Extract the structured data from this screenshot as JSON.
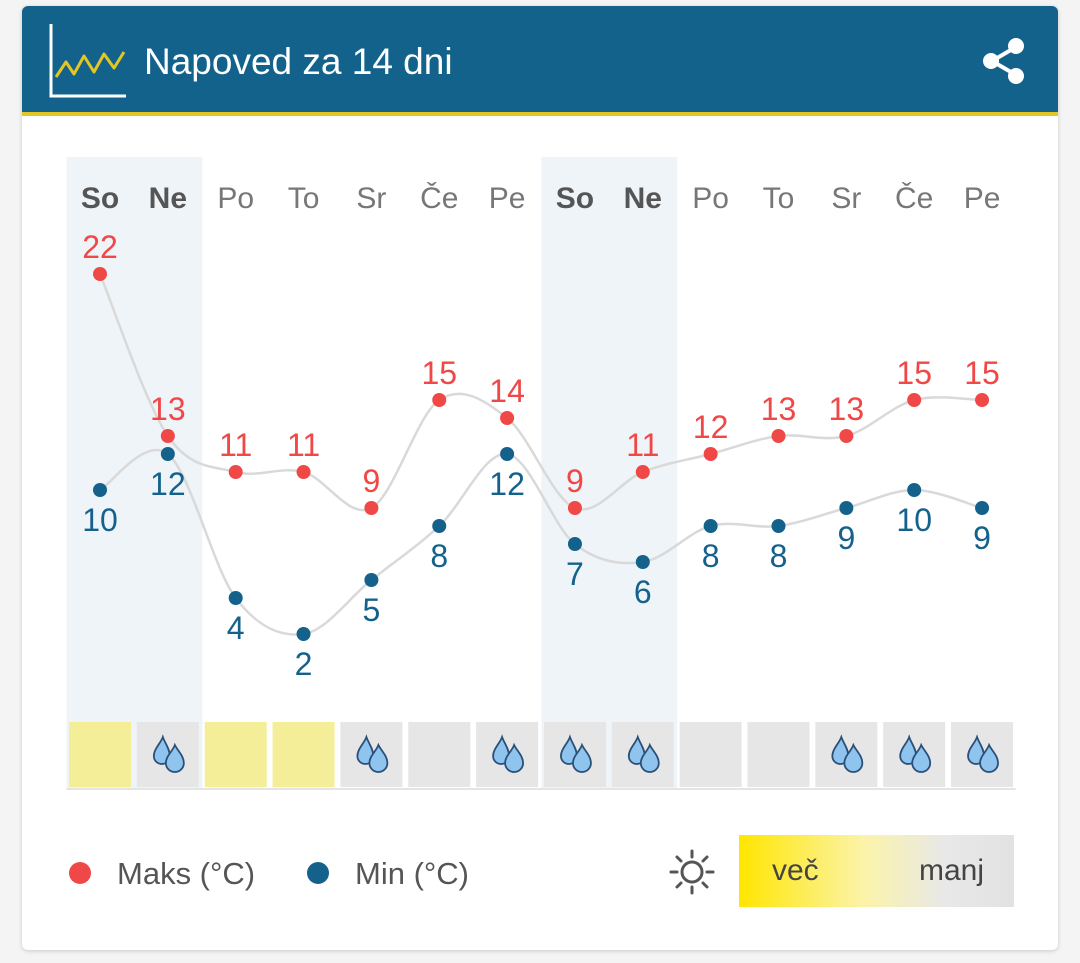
{
  "header": {
    "title": "Napoved za 14 dni",
    "icon": "line-chart-icon",
    "share_icon": "share-icon"
  },
  "colors": {
    "header_bg": "#12628c",
    "header_accent": "#e3c524",
    "max_color": "#f04747",
    "min_color": "#14628c",
    "weekend_bg": "#eff4f8",
    "sunny_cell": "#f5ee99",
    "grey_cell": "#e6e6e6",
    "line_color": "#d9d9d9"
  },
  "chart_data": {
    "type": "line",
    "title": "Napoved za 14 dni",
    "categories": [
      "So",
      "Ne",
      "Po",
      "To",
      "Sr",
      "Če",
      "Pe",
      "So",
      "Ne",
      "Po",
      "To",
      "Sr",
      "Če",
      "Pe"
    ],
    "weekend": [
      true,
      true,
      false,
      false,
      false,
      false,
      false,
      true,
      true,
      false,
      false,
      false,
      false,
      false
    ],
    "series": [
      {
        "name": "Maks (°C)",
        "values": [
          22,
          13,
          11,
          11,
          9,
          15,
          14,
          9,
          11,
          12,
          13,
          13,
          15,
          15
        ]
      },
      {
        "name": "Min (°C)",
        "values": [
          10,
          12,
          4,
          2,
          5,
          8,
          12,
          7,
          6,
          8,
          8,
          9,
          10,
          9
        ]
      }
    ],
    "precipitation": [
      false,
      true,
      false,
      false,
      true,
      false,
      true,
      true,
      true,
      false,
      false,
      true,
      true,
      true
    ],
    "sunshine": [
      "high",
      "low",
      "high",
      "high",
      "low",
      "low",
      "low",
      "low",
      "low",
      "low",
      "low",
      "low",
      "low",
      "low"
    ],
    "legend_position": "bottom-left",
    "grid": false
  },
  "legend": {
    "max_label": "Maks (°C)",
    "min_label": "Min (°C)",
    "sun_icon": "sun-icon",
    "more_label": "več",
    "less_label": "manj"
  }
}
